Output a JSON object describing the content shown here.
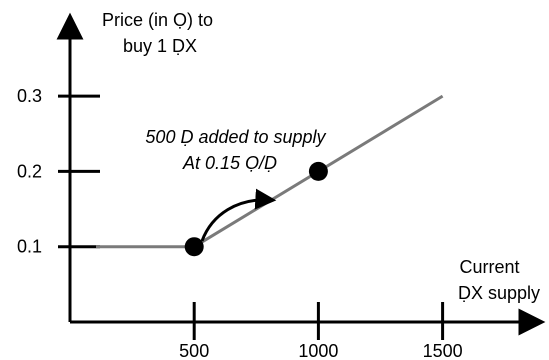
{
  "chart_data": {
    "type": "line",
    "title": "",
    "ylabel": [
      "Price (in Ọ) to",
      "buy 1 ḌX"
    ],
    "xlabel": [
      "Current",
      "ḌX supply"
    ],
    "x_ticks": [
      500,
      1000,
      1500
    ],
    "y_ticks": [
      0.1,
      0.2,
      0.3
    ],
    "x_tick_labels": [
      "500",
      "1000",
      "1500"
    ],
    "y_tick_labels": [
      "0.1",
      "0.2",
      "0.3"
    ],
    "xlim": [
      0,
      1900
    ],
    "ylim": [
      0,
      0.36
    ],
    "grid": false,
    "series": [
      {
        "x": [
          0,
          500,
          1500
        ],
        "y": [
          0.1,
          0.1,
          0.3
        ],
        "color": "#7a7a7a"
      }
    ],
    "markers": [
      {
        "x": 500,
        "y": 0.1
      },
      {
        "x": 1000,
        "y": 0.2
      }
    ],
    "annotation": [
      "500 Ḍ added to supply",
      "At 0.15 Ọ/Ḍ"
    ]
  }
}
